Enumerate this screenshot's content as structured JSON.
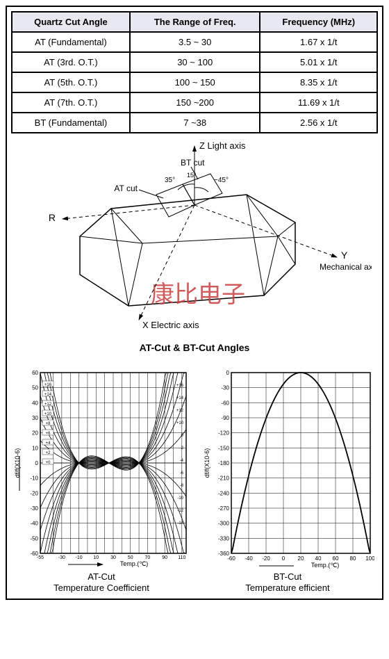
{
  "table": {
    "headers": [
      "Quartz Cut Angle",
      "The Range of Freq.",
      "Frequency (MHz)"
    ],
    "rows": [
      [
        "AT (Fundamental)",
        "3.5 ~ 30",
        "1.67 x 1/t"
      ],
      [
        "AT (3rd. O.T.)",
        "30 ~ 100",
        "5.01 x 1/t"
      ],
      [
        "AT (5th. O.T.)",
        "100 ~ 150",
        "8.35 x 1/t"
      ],
      [
        "AT (7th. O.T.)",
        "150 ~200",
        "11.69 x 1/t"
      ],
      [
        "BT (Fundamental)",
        "7 ~38",
        "2.56 x 1/t"
      ]
    ],
    "header_bg": "#e8e8f0",
    "border_color": "#000000",
    "font_size": 13
  },
  "crystal_diagram": {
    "caption": "AT-Cut & BT-Cut Angles",
    "labels": {
      "z": "Z Light axis",
      "y_top": "Y",
      "y_bottom": "Mechanical axis",
      "x": "X Electric axis",
      "r": "R",
      "at_cut": "AT cut",
      "bt_cut": "BT cut",
      "ang_35": "35°",
      "ang_15": "15°",
      "ang_45": "~45°"
    },
    "watermark_text": "康比电子",
    "watermark_color": "#c84040",
    "line_color": "#000000",
    "font_family": "Arial"
  },
  "at_chart": {
    "title1": "AT-Cut",
    "title2": "Temperature Coefficient",
    "xlabel": "Temp.(℃)",
    "ylabel": "df/f(X10-6)",
    "xlim": [
      -55,
      115
    ],
    "xticks": [
      -55,
      -40,
      -30,
      -20,
      -10,
      0,
      10,
      20,
      30,
      40,
      50,
      60,
      70,
      80,
      90,
      100,
      110
    ],
    "ylim": [
      -60,
      60
    ],
    "yticks": [
      60,
      50,
      40,
      30,
      20,
      10,
      0,
      -10,
      -20,
      -30,
      -40,
      -50,
      -60
    ],
    "grid_color": "#000000",
    "background": "#ffffff",
    "line_color": "#000000",
    "curve_params": [
      16,
      14,
      12,
      10,
      8,
      6,
      4,
      2,
      0,
      -2,
      -4,
      -6,
      -8,
      -10,
      -12,
      -14
    ],
    "annotations": [
      "+16",
      "+14",
      "+12",
      "+10",
      "+8",
      "+6",
      "+4",
      "+2",
      "+0"
    ],
    "right_annotations": [
      "+16",
      "+14",
      "+12",
      "+10",
      "0",
      "-2",
      "-4",
      "-6",
      "-8",
      "-10",
      "-12",
      "-14"
    ]
  },
  "bt_chart": {
    "title1": "BT-Cut",
    "title2": "Temperature efficient",
    "xlabel": "Temp.(℃)",
    "ylabel": "df/f(X10-6)",
    "xlim": [
      -60,
      100
    ],
    "xticks": [
      -60,
      -40,
      -20,
      0,
      20,
      40,
      60,
      80,
      100
    ],
    "ylim": [
      -360,
      0
    ],
    "yticks": [
      0,
      -30,
      -60,
      -90,
      -120,
      -150,
      -180,
      -210,
      -240,
      -270,
      -300,
      -330,
      -360
    ],
    "grid_color": "#000000",
    "background": "#ffffff",
    "line_color": "#000000",
    "vertex_x": 20,
    "vertex_y": 0,
    "coef": -0.057
  }
}
